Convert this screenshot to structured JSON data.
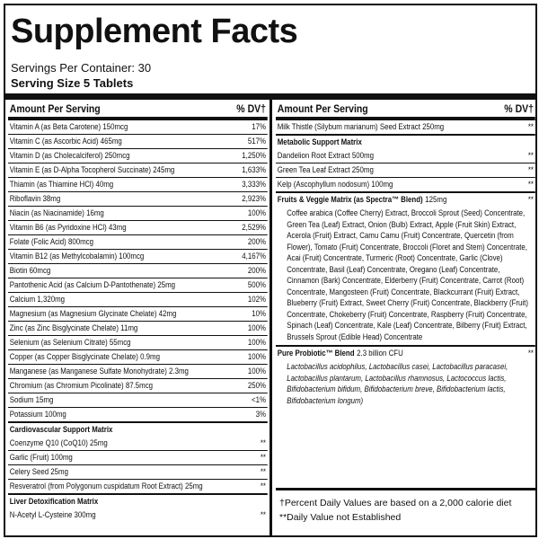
{
  "title": "Supplement Facts",
  "servings": "Servings Per Container: 30",
  "serving_size": "Serving Size 5 Tablets",
  "left": {
    "header": {
      "amount": "Amount Per Serving",
      "dv": "% DV†"
    },
    "items": [
      {
        "name": "Vitamin A (as Beta Carotene) 150mcg",
        "dv": "17%"
      },
      {
        "name": "Vitamin C (as Ascorbic Acid) 465mg",
        "dv": "517%"
      },
      {
        "name": "Vitamin D (as Cholecalciferol) 250mcg",
        "dv": "1,250%"
      },
      {
        "name": "Vitamin E (as D-Alpha Tocopherol Succinate) 245mg",
        "dv": "1,633%"
      },
      {
        "name": "Thiamin (as Thiamine HCl) 40mg",
        "dv": "3,333%"
      },
      {
        "name": "Riboflavin 38mg",
        "dv": "2,923%"
      },
      {
        "name": "Niacin (as Niacinamide) 16mg",
        "dv": "100%"
      },
      {
        "name": "Vitamin B6 (as Pyridoxine HCl) 43mg",
        "dv": "2,529%"
      },
      {
        "name": "Folate (Folic Acid) 800mcg",
        "dv": "200%"
      },
      {
        "name": "Vitamin B12 (as Methylcobalamin) 100mcg",
        "dv": "4,167%"
      },
      {
        "name": "Biotin 60mcg",
        "dv": "200%"
      },
      {
        "name": "Pantothenic Acid (as Calcium D-Pantothenate) 25mg",
        "dv": "500%"
      },
      {
        "name": "Calcium 1,320mg",
        "dv": "102%"
      },
      {
        "name": "Magnesium (as Magnesium Glycinate Chelate) 42mg",
        "dv": "10%"
      },
      {
        "name": "Zinc (as Zinc Bisglycinate Chelate) 11mg",
        "dv": "100%"
      },
      {
        "name": "Selenium (as Selenium Citrate) 55mcg",
        "dv": "100%"
      },
      {
        "name": "Copper (as Copper Bisglycinate Chelate) 0.9mg",
        "dv": "100%"
      },
      {
        "name": "Manganese (as Manganese Sulfate Monohydrate) 2.3mg",
        "dv": "100%"
      },
      {
        "name": "Chromium (as Chromium Picolinate) 87.5mcg",
        "dv": "250%"
      },
      {
        "name": "Sodium 15mg",
        "dv": "<1%"
      },
      {
        "name": "Potassium 100mg",
        "dv": "3%"
      },
      {
        "heading": "Cardiovascular Support Matrix"
      },
      {
        "name": "Coenzyme Q10 (CoQ10) 25mg",
        "dv": "**"
      },
      {
        "name": "Garlic (Fruit) 100mg",
        "dv": "**"
      },
      {
        "name": "Celery Seed 25mg",
        "dv": "**"
      },
      {
        "name": "Resveratrol (from Polygonum cuspidatum Root Extract) 25mg",
        "dv": "**"
      },
      {
        "heading": "Liver Detoxification Matrix"
      },
      {
        "name": "N-Acetyl L-Cysteine 300mg",
        "dv": "**"
      }
    ]
  },
  "right": {
    "header": {
      "amount": "Amount Per Serving",
      "dv": "% DV†"
    },
    "items": [
      {
        "name": "Milk Thistle (Silybum marianum) Seed Extract 250mg",
        "dv": "**"
      },
      {
        "heading": "Metabolic Support Matrix"
      },
      {
        "name": "Dandelion Root Extract 500mg",
        "dv": "**"
      },
      {
        "name": "Green Tea Leaf Extract 250mg",
        "dv": "**"
      },
      {
        "name": "Kelp (Ascophyllum nodosum) 100mg",
        "dv": "**"
      },
      {
        "blend": "Fruits & Veggie Matrix (as Spectra™ Blend)",
        "amount": "125mg",
        "dv": "**"
      },
      {
        "ingredients": "Coffee arabica (Coffee Cherry) Extract, Broccoli Sprout (Seed) Concentrate, Green Tea (Leaf) Extract, Onion (Bulb) Extract, Apple (Fruit Skin) Extract, Acerola (Fruit) Extract, Camu Camu (Fruit) Concentrate, Quercetin (from Flower), Tomato (Fruit) Concentrate, Broccoli (Floret and Stem) Concentrate, Acai (Fruit) Concentrate, Turmeric (Root) Concentrate, Garlic (Clove) Concentrate, Basil (Leaf) Concentrate, Oregano (Leaf) Concentrate, Cinnamon (Bark) Concentrate, Elderberry (Fruit) Concentrate, Carrot (Root) Concentrate, Mangosteen (Fruit) Concentrate, Blackcurrant (Fruit) Extract, Blueberry (Fruit) Extract, Sweet Cherry (Fruit) Concentrate, Blackberry (Fruit) Concentrate, Chokeberry (Fruit) Concentrate, Raspberry (Fruit) Concentrate, Spinach (Leaf) Concentrate, Kale (Leaf) Concentrate, Bilberry (Fruit) Extract, Brussels Sprout (Edible Head) Concentrate"
      },
      {
        "blend": "Pure Probiotic™ Blend",
        "amount": "2.3 billion CFU",
        "dv": "**"
      },
      {
        "strains": "Lactobacillus acidophilus, Lactobacillus casei, Lactobacillus paracasei, Lactobacillus plantarum, Lactobacillus rhamnosus, Lactococcus lactis, Bifidobacterium bifidum, Bifidobacterium breve, Bifidobacterium lactis, Bifidobacterium longum)"
      }
    ],
    "footnotes": [
      "†Percent Daily Values are based on a 2,000 calorie diet",
      "**Daily Value not Established"
    ]
  }
}
